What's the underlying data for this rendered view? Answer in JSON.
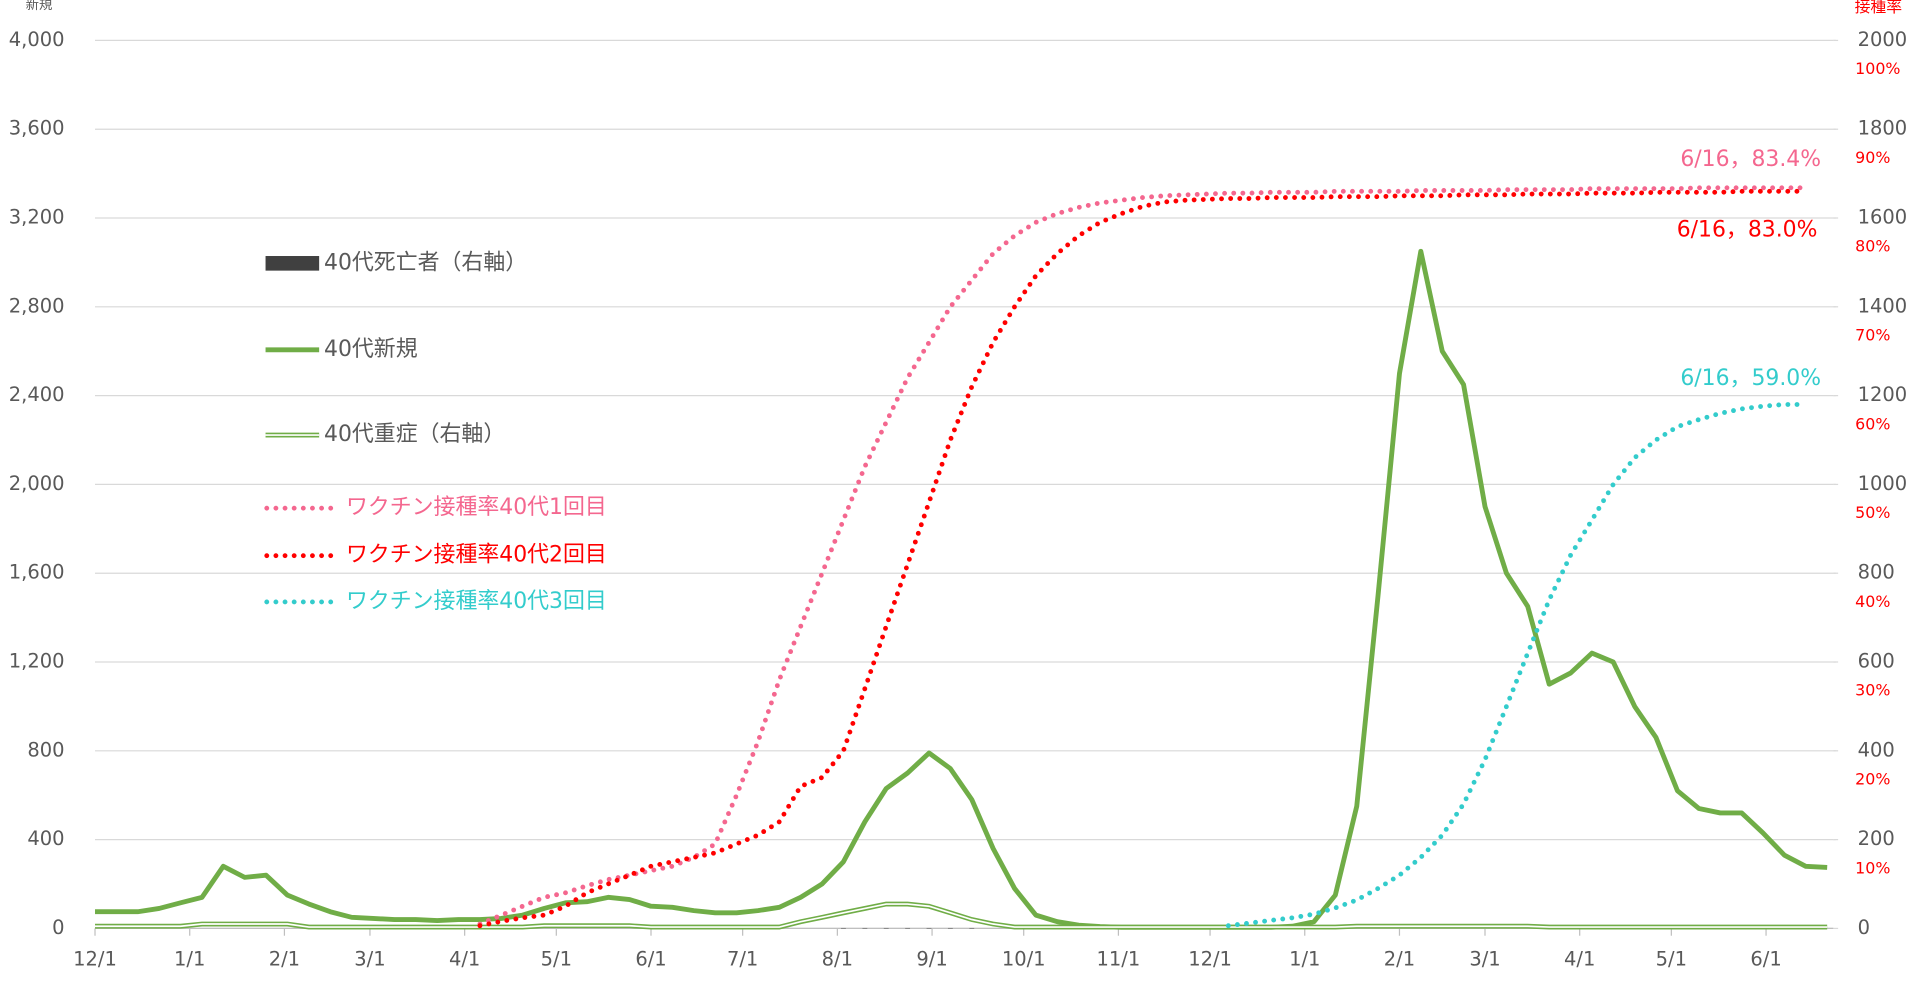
{
  "chart_data": {
    "type": "line",
    "ylabel": "新規",
    "y2label": "接種率",
    "x": [
      0,
      7,
      14,
      21,
      28,
      35,
      42,
      49,
      56,
      63,
      70,
      77,
      84,
      91,
      98,
      105,
      112,
      119,
      126,
      133,
      140,
      147,
      154,
      161,
      168,
      175,
      182,
      189,
      196,
      203,
      210,
      217,
      224,
      231,
      238,
      245,
      252,
      259,
      266,
      273,
      280,
      287,
      294,
      301,
      308,
      315,
      322,
      329,
      336,
      343,
      350,
      357,
      364,
      371,
      378,
      385,
      392,
      399,
      406,
      413,
      420,
      427,
      434,
      441,
      448,
      455,
      462,
      469,
      476,
      483,
      490,
      497,
      504,
      511,
      518,
      525,
      532,
      539,
      546,
      553,
      560,
      567
    ],
    "xlim": [
      0,
      569
    ],
    "xticks": [
      {
        "value": 0,
        "label": "12/1"
      },
      {
        "value": 31,
        "label": "1/1"
      },
      {
        "value": 62,
        "label": "2/1"
      },
      {
        "value": 90,
        "label": "3/1"
      },
      {
        "value": 121,
        "label": "4/1"
      },
      {
        "value": 151,
        "label": "5/1"
      },
      {
        "value": 182,
        "label": "6/1"
      },
      {
        "value": 212,
        "label": "7/1"
      },
      {
        "value": 243,
        "label": "8/1"
      },
      {
        "value": 274,
        "label": "9/1"
      },
      {
        "value": 304,
        "label": "10/1"
      },
      {
        "value": 335,
        "label": "11/1"
      },
      {
        "value": 365,
        "label": "12/1"
      },
      {
        "value": 396,
        "label": "1/1"
      },
      {
        "value": 427,
        "label": "2/1"
      },
      {
        "value": 455,
        "label": "3/1"
      },
      {
        "value": 486,
        "label": "4/1"
      },
      {
        "value": 516,
        "label": "5/1"
      },
      {
        "value": 547,
        "label": "6/1"
      }
    ],
    "ylim": [
      0,
      4000
    ],
    "yticks": [
      0,
      400,
      800,
      {
        "value": 1200,
        "label": "1,200"
      },
      {
        "value": 1600,
        "label": "1,600"
      },
      {
        "value": 2000,
        "label": "2,000"
      },
      {
        "value": 2400,
        "label": "2,400"
      },
      {
        "value": 2800,
        "label": "2,800"
      },
      {
        "value": 3200,
        "label": "3,200"
      },
      {
        "value": 3600,
        "label": "3,600"
      },
      {
        "value": 4000,
        "label": "4,000"
      }
    ],
    "y2lim": [
      0,
      2000
    ],
    "y2ticks": [
      0,
      200,
      400,
      600,
      800,
      1000,
      1200,
      1400,
      1600,
      1800,
      2000
    ],
    "y3lim": [
      0,
      100
    ],
    "y3ticks": [
      {
        "value": 10,
        "label": "10%"
      },
      {
        "value": 20,
        "label": "20%"
      },
      {
        "value": 30,
        "label": "30%"
      },
      {
        "value": 40,
        "label": "40%"
      },
      {
        "value": 50,
        "label": "50%"
      },
      {
        "value": 60,
        "label": "60%"
      },
      {
        "value": 70,
        "label": "70%"
      },
      {
        "value": 80,
        "label": "80%"
      },
      {
        "value": 90,
        "label": "90%"
      },
      {
        "value": 100,
        "label": "100%"
      }
    ],
    "grid": true,
    "series": [
      {
        "name": "40代死亡者（右軸）",
        "type": "bar",
        "axis": "y2",
        "color": "#404040",
        "values": [
          0,
          0,
          0,
          0,
          0,
          0,
          0,
          0,
          0,
          0,
          0,
          0,
          0,
          0,
          0,
          0,
          0,
          0,
          0,
          0,
          0,
          0,
          0,
          0,
          0,
          0,
          0,
          0,
          0,
          0,
          0,
          0,
          0,
          0,
          0,
          1,
          1,
          1,
          1,
          1,
          1,
          1,
          0,
          0,
          0,
          0,
          0,
          0,
          0,
          0,
          0,
          0,
          0,
          0,
          0,
          0,
          0,
          0,
          0,
          0,
          0,
          0,
          0,
          0,
          0,
          0,
          0,
          0,
          0,
          0,
          0,
          0,
          0,
          0,
          0,
          0,
          0,
          0,
          0,
          0,
          0,
          0
        ]
      },
      {
        "name": "40代新規",
        "type": "line",
        "color": "#70ad47",
        "values": [
          75,
          75,
          75,
          90,
          115,
          140,
          280,
          230,
          240,
          150,
          110,
          75,
          50,
          45,
          40,
          40,
          35,
          40,
          40,
          45,
          60,
          90,
          115,
          120,
          140,
          130,
          100,
          95,
          80,
          70,
          70,
          80,
          95,
          140,
          200,
          300,
          480,
          630,
          700,
          790,
          720,
          580,
          360,
          180,
          60,
          30,
          15,
          8,
          5,
          5,
          5,
          5,
          5,
          5,
          5,
          5,
          10,
          30,
          150,
          550,
          1500,
          2500,
          3050,
          2600,
          2450,
          1900,
          1600,
          1450,
          1100,
          1150,
          1240,
          1200,
          1000,
          860,
          620,
          540,
          520,
          520,
          430,
          330,
          280,
          275
        ]
      },
      {
        "name": "40代重症（右軸）",
        "type": "double",
        "axis": "y2",
        "color": "#70ad47",
        "values": [
          5,
          5,
          5,
          5,
          5,
          10,
          10,
          10,
          10,
          10,
          3,
          3,
          3,
          3,
          3,
          3,
          3,
          3,
          3,
          3,
          3,
          6,
          6,
          6,
          6,
          6,
          3,
          3,
          3,
          3,
          3,
          3,
          3,
          15,
          25,
          35,
          45,
          55,
          55,
          50,
          35,
          20,
          10,
          3,
          3,
          3,
          3,
          3,
          3,
          3,
          3,
          3,
          3,
          3,
          3,
          3,
          3,
          3,
          3,
          5,
          5,
          5,
          5,
          5,
          5,
          5,
          5,
          5,
          3,
          3,
          3,
          3,
          3,
          3,
          3,
          3,
          3,
          3,
          3,
          3,
          3,
          3
        ]
      },
      {
        "name": "ワクチン接種率40代1回目",
        "type": "dotted",
        "axis": "y3",
        "color": "#f4678f",
        "values": [
          null,
          null,
          null,
          null,
          null,
          null,
          null,
          null,
          null,
          null,
          null,
          null,
          null,
          null,
          null,
          null,
          null,
          null,
          0.5,
          1.5,
          2.5,
          3.5,
          4,
          4.8,
          5.5,
          6,
          6.5,
          7,
          8,
          9.5,
          15,
          21,
          28,
          34,
          40,
          46,
          52,
          57,
          62,
          66,
          70,
          73,
          76,
          78,
          79.5,
          80.5,
          81.2,
          81.7,
          82,
          82.3,
          82.5,
          82.6,
          82.7,
          82.8,
          82.8,
          82.9,
          82.9,
          82.9,
          83,
          83,
          83,
          83,
          83.1,
          83.1,
          83.1,
          83.1,
          83.2,
          83.2,
          83.2,
          83.2,
          83.3,
          83.3,
          83.3,
          83.3,
          83.3,
          83.4,
          83.4,
          83.4,
          83.4,
          83.4,
          83.4,
          null
        ]
      },
      {
        "name": "ワクチン接種率40代2回目",
        "type": "dotted",
        "axis": "y3",
        "color": "#ff0000",
        "values": [
          null,
          null,
          null,
          null,
          null,
          null,
          null,
          null,
          null,
          null,
          null,
          null,
          null,
          null,
          null,
          null,
          null,
          null,
          0.3,
          0.8,
          1.2,
          1.5,
          2.5,
          4,
          5,
          6,
          7,
          7.5,
          8,
          8.5,
          9.5,
          10.5,
          12,
          16,
          17,
          20,
          27,
          34,
          41,
          48,
          55,
          61,
          66,
          70,
          73.5,
          76,
          78,
          79.5,
          80.5,
          81.3,
          81.8,
          82,
          82.1,
          82.2,
          82.2,
          82.3,
          82.3,
          82.3,
          82.4,
          82.4,
          82.4,
          82.5,
          82.5,
          82.5,
          82.6,
          82.6,
          82.6,
          82.7,
          82.7,
          82.7,
          82.8,
          82.8,
          82.8,
          82.9,
          82.9,
          82.9,
          82.9,
          83,
          83,
          83,
          83,
          null
        ]
      },
      {
        "name": "ワクチン接種率40代3回目",
        "type": "dotted",
        "axis": "y3",
        "color": "#33cccc",
        "values": [
          null,
          null,
          null,
          null,
          null,
          null,
          null,
          null,
          null,
          null,
          null,
          null,
          null,
          null,
          null,
          null,
          null,
          null,
          null,
          null,
          null,
          null,
          null,
          null,
          null,
          null,
          null,
          null,
          null,
          null,
          null,
          null,
          null,
          null,
          null,
          null,
          null,
          null,
          null,
          null,
          null,
          null,
          null,
          null,
          null,
          null,
          null,
          null,
          null,
          null,
          null,
          null,
          null,
          0.3,
          0.6,
          0.9,
          1.2,
          1.6,
          2.3,
          3.2,
          4.5,
          6,
          8,
          10.5,
          14,
          19,
          25,
          31,
          37,
          42,
          46,
          50,
          53,
          55,
          56.5,
          57.3,
          58,
          58.5,
          58.8,
          59,
          59,
          null
        ]
      }
    ],
    "annotations": [
      {
        "text": "6/16，83.4%",
        "color": "#f4678f"
      },
      {
        "text": "6/16，83.0%",
        "color": "#ff0000"
      },
      {
        "text": "6/16，59.0%",
        "color": "#33cccc"
      }
    ]
  }
}
